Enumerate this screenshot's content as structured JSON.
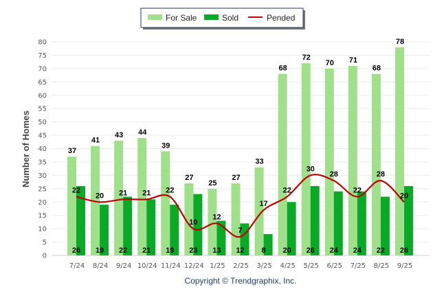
{
  "chart_data": {
    "type": "bar",
    "title": "",
    "ylabel": "Number of Homes",
    "xlabel": "",
    "ylim": [
      0,
      80
    ],
    "ytick_step": 5,
    "grid": true,
    "legend_position": "top-center",
    "categories": [
      "7/24",
      "8/24",
      "9/24",
      "10/24",
      "11/24",
      "12/24",
      "1/25",
      "2/25",
      "3/25",
      "4/25",
      "5/25",
      "6/25",
      "7/25",
      "8/25",
      "9/25"
    ],
    "series": [
      {
        "name": "For Sale",
        "kind": "bar",
        "color": "#a0e08a",
        "values": [
          37,
          41,
          43,
          44,
          39,
          27,
          25,
          27,
          33,
          68,
          72,
          70,
          71,
          68,
          78
        ]
      },
      {
        "name": "Sold",
        "kind": "bar",
        "color": "#0aaa28",
        "values": [
          26,
          19,
          22,
          21,
          19,
          23,
          13,
          12,
          8,
          20,
          26,
          24,
          24,
          22,
          26
        ]
      },
      {
        "name": "Pended",
        "kind": "line",
        "color": "#c00000",
        "values": [
          22,
          20,
          21,
          21,
          22,
          10,
          12,
          7,
          17,
          22,
          30,
          28,
          22,
          28,
          20
        ]
      }
    ]
  },
  "footer": {
    "copyright": "Copyright © Trendgraphix, Inc."
  }
}
